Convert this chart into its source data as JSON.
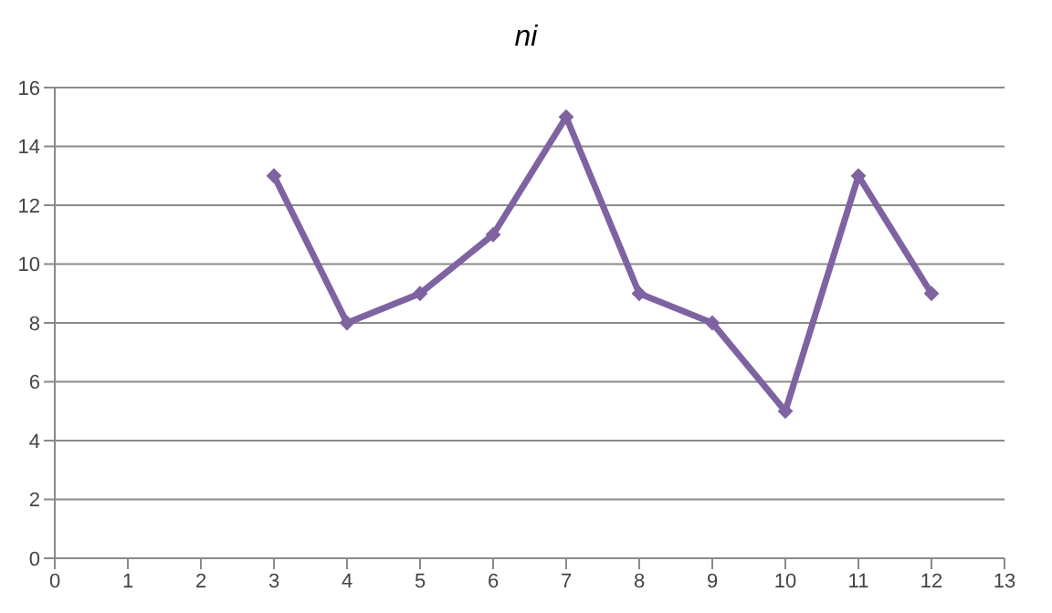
{
  "chart_data": {
    "type": "line",
    "title": "ni",
    "x": [
      3,
      4,
      5,
      6,
      7,
      8,
      9,
      10,
      11,
      12
    ],
    "series": [
      {
        "color": "#7f63a1",
        "values": [
          13,
          8,
          9,
          11,
          15,
          9,
          8,
          5,
          13,
          9
        ]
      }
    ],
    "xlim": [
      0,
      13
    ],
    "xticks": [
      0,
      1,
      2,
      3,
      4,
      5,
      6,
      7,
      8,
      9,
      10,
      11,
      12,
      13
    ],
    "ylim": [
      0,
      16
    ],
    "yticks": [
      0,
      2,
      4,
      6,
      8,
      10,
      12,
      14,
      16
    ],
    "grid": "y",
    "legend": false,
    "marker": "diamond",
    "line_style": "solid"
  }
}
